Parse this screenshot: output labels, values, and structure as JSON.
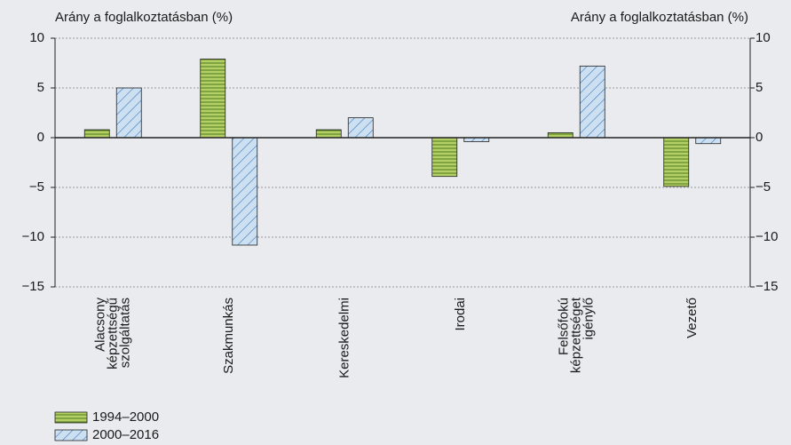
{
  "chart_data": {
    "type": "bar",
    "y_label": "Arány a foglalkoztatásban (%)",
    "y2_label": "Arány a foglalkoztatásban (%)",
    "categories": [
      "Alacsony képzettségű szolgáltatás",
      "Szakmunkás",
      "Kereskedelmi",
      "Irodai",
      "Felsőfokú képzettséget igénylő",
      "Vezető"
    ],
    "series": [
      {
        "name": "1994–2000",
        "color": "#b3cf66",
        "values": [
          0.8,
          7.9,
          0.8,
          -3.9,
          0.5,
          -4.9
        ]
      },
      {
        "name": "2000–2016",
        "color": "#cde0f2",
        "values": [
          5.0,
          -10.8,
          2.0,
          -0.4,
          7.2,
          -0.6
        ]
      }
    ],
    "ylim": [
      -15,
      10
    ],
    "yticks": [
      10,
      5,
      0,
      {
        "value": -5,
        "label": "−5"
      },
      {
        "value": -10,
        "label": "−10"
      },
      {
        "value": -15,
        "label": "−15"
      }
    ],
    "y2lim": [
      -15,
      10
    ],
    "y2ticks": [
      10,
      5,
      0,
      {
        "value": -5,
        "label": "−5"
      },
      {
        "value": -10,
        "label": "−10"
      },
      {
        "value": -15,
        "label": "−15"
      }
    ],
    "grid": true
  }
}
